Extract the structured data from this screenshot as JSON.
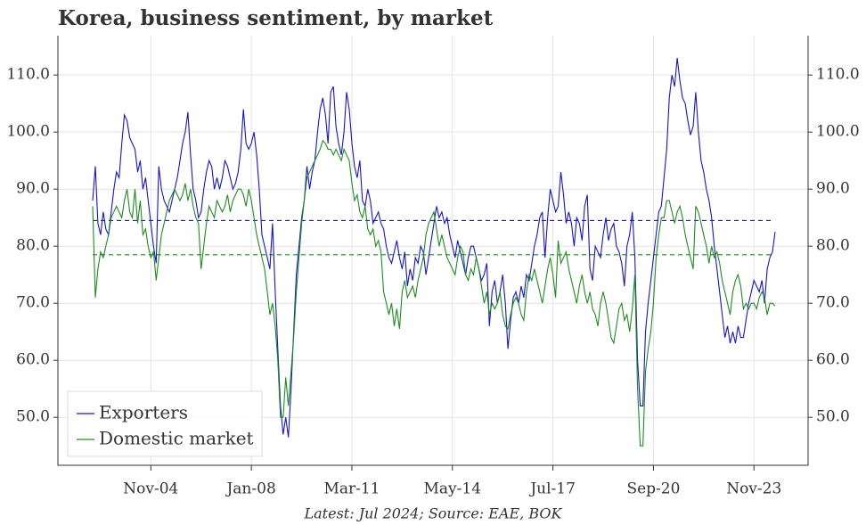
{
  "chart_data": {
    "type": "line",
    "title": "Korea, business sentiment, by market",
    "footnote": "Latest: Jul 2024; Source: EAE, BOK",
    "x": [
      "Jan-03",
      "Feb-03",
      "Mar-03",
      "Apr-03",
      "May-03",
      "Jun-03",
      "Jul-03",
      "Aug-03",
      "Sep-03",
      "Oct-03",
      "Nov-03",
      "Dec-03",
      "Jan-04",
      "Feb-04",
      "Mar-04",
      "Apr-04",
      "May-04",
      "Jun-04",
      "Jul-04",
      "Aug-04",
      "Sep-04",
      "Oct-04",
      "Nov-04",
      "Dec-04",
      "Jan-05",
      "Feb-05",
      "Mar-05",
      "Apr-05",
      "May-05",
      "Jun-05",
      "Jul-05",
      "Aug-05",
      "Sep-05",
      "Oct-05",
      "Nov-05",
      "Dec-05",
      "Jan-06",
      "Feb-06",
      "Mar-06",
      "Apr-06",
      "May-06",
      "Jun-06",
      "Jul-06",
      "Aug-06",
      "Sep-06",
      "Oct-06",
      "Nov-06",
      "Dec-06",
      "Jan-07",
      "Feb-07",
      "Mar-07",
      "Apr-07",
      "May-07",
      "Jun-07",
      "Jul-07",
      "Aug-07",
      "Sep-07",
      "Oct-07",
      "Nov-07",
      "Dec-07",
      "Jan-08",
      "Feb-08",
      "Mar-08",
      "Apr-08",
      "May-08",
      "Jun-08",
      "Jul-08",
      "Aug-08",
      "Sep-08",
      "Oct-08",
      "Nov-08",
      "Dec-08",
      "Jan-09",
      "Feb-09",
      "Mar-09",
      "Apr-09",
      "May-09",
      "Jun-09",
      "Jul-09",
      "Aug-09",
      "Sep-09",
      "Oct-09",
      "Nov-09",
      "Dec-09",
      "Jan-10",
      "Feb-10",
      "Mar-10",
      "Apr-10",
      "May-10",
      "Jun-10",
      "Jul-10",
      "Aug-10",
      "Sep-10",
      "Oct-10",
      "Nov-10",
      "Dec-10",
      "Jan-11",
      "Feb-11",
      "Mar-11",
      "Apr-11",
      "May-11",
      "Jun-11",
      "Jul-11",
      "Aug-11",
      "Sep-11",
      "Oct-11",
      "Nov-11",
      "Dec-11",
      "Jan-12",
      "Feb-12",
      "Mar-12",
      "Apr-12",
      "May-12",
      "Jun-12",
      "Jul-12",
      "Aug-12",
      "Sep-12",
      "Oct-12",
      "Nov-12",
      "Dec-12",
      "Jan-13",
      "Feb-13",
      "Mar-13",
      "Apr-13",
      "May-13",
      "Jun-13",
      "Jul-13",
      "Aug-13",
      "Sep-13",
      "Oct-13",
      "Nov-13",
      "Dec-13",
      "Jan-14",
      "Feb-14",
      "Mar-14",
      "Apr-14",
      "May-14",
      "Jun-14",
      "Jul-14",
      "Aug-14",
      "Sep-14",
      "Oct-14",
      "Nov-14",
      "Dec-14",
      "Jan-15",
      "Feb-15",
      "Mar-15",
      "Apr-15",
      "May-15",
      "Jun-15",
      "Jul-15",
      "Aug-15",
      "Sep-15",
      "Oct-15",
      "Nov-15",
      "Dec-15",
      "Jan-16",
      "Feb-16",
      "Mar-16",
      "Apr-16",
      "May-16",
      "Jun-16",
      "Jul-16",
      "Aug-16",
      "Sep-16",
      "Oct-16",
      "Nov-16",
      "Dec-16",
      "Jan-17",
      "Feb-17",
      "Mar-17",
      "Apr-17",
      "May-17",
      "Jun-17",
      "Jul-17",
      "Aug-17",
      "Sep-17",
      "Oct-17",
      "Nov-17",
      "Dec-17",
      "Jan-18",
      "Feb-18",
      "Mar-18",
      "Apr-18",
      "May-18",
      "Jun-18",
      "Jul-18",
      "Aug-18",
      "Sep-18",
      "Oct-18",
      "Nov-18",
      "Dec-18",
      "Jan-19",
      "Feb-19",
      "Mar-19",
      "Apr-19",
      "May-19",
      "Jun-19",
      "Jul-19",
      "Aug-19",
      "Sep-19",
      "Oct-19",
      "Nov-19",
      "Dec-19",
      "Jan-20",
      "Feb-20",
      "Mar-20",
      "Apr-20",
      "May-20",
      "Jun-20",
      "Jul-20",
      "Aug-20",
      "Sep-20",
      "Oct-20",
      "Nov-20",
      "Dec-20",
      "Jan-21",
      "Feb-21",
      "Mar-21",
      "Apr-21",
      "May-21",
      "Jun-21",
      "Jul-21",
      "Aug-21",
      "Sep-21",
      "Oct-21",
      "Nov-21",
      "Dec-21",
      "Jan-22",
      "Feb-22",
      "Mar-22",
      "Apr-22",
      "May-22",
      "Jun-22",
      "Jul-22",
      "Aug-22",
      "Sep-22",
      "Oct-22",
      "Nov-22",
      "Dec-22",
      "Jan-23",
      "Feb-23",
      "Mar-23",
      "Apr-23",
      "May-23",
      "Jun-23",
      "Jul-23",
      "Aug-23",
      "Sep-23",
      "Oct-23",
      "Nov-23",
      "Dec-23",
      "Jan-24",
      "Feb-24",
      "Mar-24",
      "Apr-24",
      "May-24",
      "Jun-24",
      "Jul-24"
    ],
    "series": [
      {
        "name": "Exporters",
        "color": "#1414d2",
        "values": [
          88,
          94,
          84,
          82,
          86,
          83,
          82,
          86,
          90,
          93,
          92,
          98,
          103,
          102,
          99,
          98,
          97,
          93,
          95,
          90,
          92,
          88,
          84,
          80,
          77,
          94,
          90,
          88,
          87,
          86,
          88,
          90,
          92,
          95,
          98,
          100,
          103.5,
          96,
          90,
          88,
          85,
          86,
          90,
          93,
          95,
          94,
          90,
          92,
          90,
          92,
          95,
          94,
          92,
          90,
          91,
          93,
          97,
          104,
          98,
          97,
          98,
          100,
          96,
          90,
          82,
          80,
          78,
          76,
          84,
          72,
          62,
          52,
          47,
          50,
          46.5,
          55,
          65,
          75,
          80,
          85,
          88,
          94,
          90,
          93,
          95,
          100,
          104,
          106,
          103,
          98,
          107,
          108,
          101,
          98,
          96,
          100,
          107,
          104,
          98,
          94,
          92,
          95,
          88,
          87,
          90,
          88,
          84,
          85,
          86,
          84,
          83,
          80,
          78,
          77,
          79,
          81,
          78,
          76,
          79,
          73,
          76,
          74,
          78,
          77,
          80,
          79,
          75,
          78,
          81,
          84,
          87,
          85,
          86,
          84,
          85,
          82,
          80,
          78,
          81,
          79,
          77,
          75,
          78,
          80,
          80,
          78,
          76,
          74,
          75,
          77,
          66,
          72,
          74,
          70,
          72,
          75,
          70,
          62,
          67,
          71,
          72,
          70,
          73,
          71,
          75,
          74,
          77,
          80,
          82,
          85,
          86,
          78,
          85,
          90,
          88,
          86,
          87,
          93,
          89,
          84,
          86,
          84,
          80,
          85,
          84,
          81,
          87,
          89,
          76,
          74,
          80,
          79,
          78,
          82,
          85,
          81,
          83,
          84,
          80,
          79,
          77,
          73,
          80,
          82,
          86,
          78,
          60,
          52,
          52,
          65,
          70,
          74,
          78,
          82,
          86,
          87,
          92,
          97,
          106,
          110,
          108,
          113,
          109,
          106,
          105,
          102,
          99.5,
          101,
          107,
          100,
          95,
          93,
          90,
          88,
          85,
          80,
          76,
          72,
          68,
          64,
          66,
          63,
          65,
          63,
          66,
          64,
          64,
          67,
          70,
          72,
          74,
          73,
          72,
          74,
          70,
          76,
          78,
          79,
          82.5
        ]
      },
      {
        "name": "Domestic market",
        "color": "#1e8c1e",
        "values": [
          87,
          71,
          76,
          79,
          78,
          80,
          82,
          85,
          86,
          87,
          86,
          85,
          88,
          90,
          86,
          85,
          90,
          84,
          88,
          82,
          83,
          80,
          78,
          79,
          74,
          78,
          82,
          84,
          86,
          88,
          89,
          90,
          89,
          88,
          89,
          91,
          88,
          90,
          87,
          85,
          84,
          76,
          80,
          84,
          87,
          86,
          85,
          88,
          87,
          86,
          87,
          89,
          86,
          88,
          89,
          90,
          90,
          89,
          87,
          90,
          88,
          85,
          82,
          80,
          78,
          76,
          72,
          68,
          70,
          66,
          60,
          50,
          50,
          57,
          52,
          58,
          64,
          72,
          78,
          84,
          88,
          92,
          93,
          94,
          95,
          96,
          97,
          98.5,
          98,
          97,
          97,
          96,
          97,
          96,
          95,
          97,
          96,
          95,
          91,
          88,
          89,
          86,
          85,
          87,
          83,
          82,
          83,
          80,
          81,
          79,
          72,
          70,
          68,
          70,
          66,
          69,
          65.5,
          72,
          74,
          71,
          72,
          73,
          71,
          74,
          76,
          78,
          82,
          84,
          85,
          86,
          83,
          80,
          82,
          80,
          78,
          77,
          76,
          75,
          78,
          80,
          79,
          75,
          74,
          76,
          75,
          78,
          76,
          73,
          70,
          72,
          68,
          70,
          69,
          70,
          72,
          68,
          66,
          65.5,
          68,
          70,
          71,
          70,
          68,
          67,
          72,
          75,
          74,
          76,
          74,
          72,
          70,
          73,
          76,
          78,
          75,
          71,
          81,
          77,
          78,
          79,
          76,
          74,
          72,
          70,
          73,
          75,
          72,
          70,
          72,
          69,
          68,
          66,
          70,
          72,
          70,
          67,
          64,
          63,
          66,
          69,
          70,
          67,
          68,
          65,
          69,
          75,
          55,
          45,
          45,
          58,
          62,
          65,
          70,
          78,
          82,
          85,
          85,
          88,
          88,
          86,
          84,
          86,
          87,
          85,
          82,
          80,
          78,
          76,
          87,
          86,
          84,
          82,
          80,
          77,
          80,
          78,
          79,
          77,
          74,
          72,
          70,
          68,
          72,
          74,
          75,
          73,
          69,
          70,
          69,
          70,
          70,
          69,
          71,
          72,
          71,
          68,
          70,
          70,
          69.5
        ]
      }
    ],
    "reference_lines": [
      {
        "value": 84.5,
        "color": "#1414d2"
      },
      {
        "value": 78.5,
        "color": "#1e8c1e"
      }
    ],
    "ylim": [
      41.6,
      116.9
    ],
    "yticks": [
      {
        "value": 50,
        "label": "50.0"
      },
      {
        "value": 60,
        "label": "60.0"
      },
      {
        "value": 70,
        "label": "70.0"
      },
      {
        "value": 80,
        "label": "80.0"
      },
      {
        "value": 90,
        "label": "90.0"
      },
      {
        "value": 100,
        "label": "100.0"
      },
      {
        "value": 110,
        "label": "110.0"
      }
    ],
    "xticks": [
      "Nov-04",
      "Jan-08",
      "Mar-11",
      "May-14",
      "Jul-17",
      "Sep-20",
      "Nov-23"
    ],
    "grid": true,
    "legend": "lower left"
  }
}
